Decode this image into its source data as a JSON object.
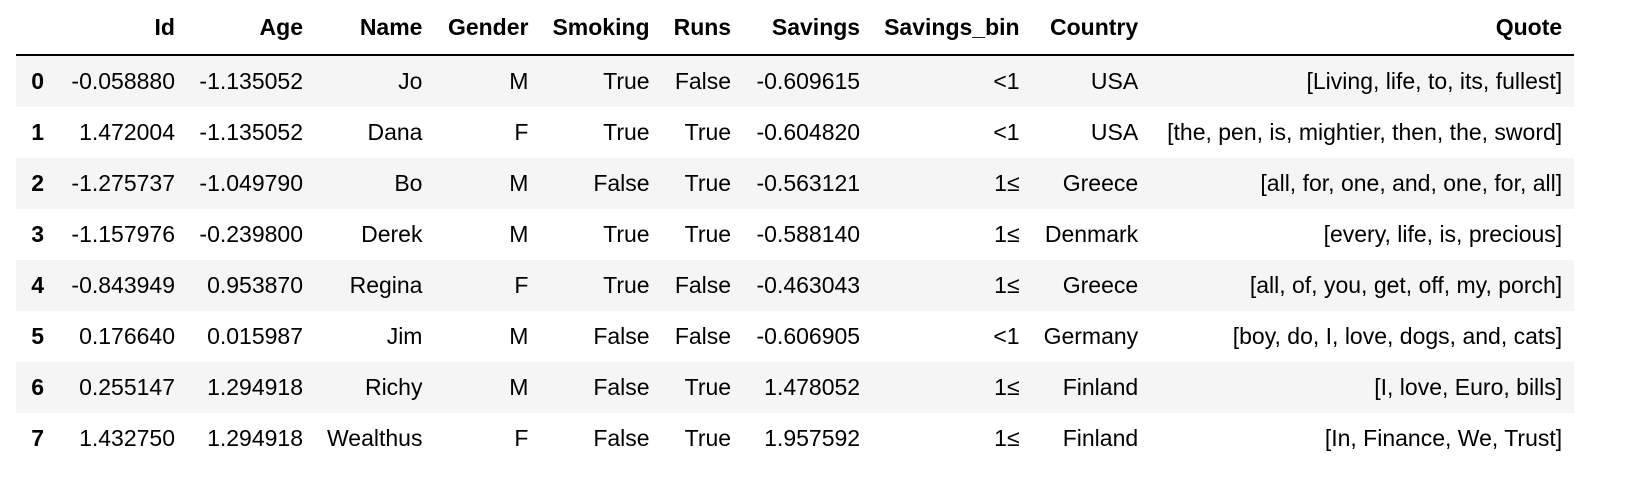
{
  "columns": {
    "index": "",
    "id": "Id",
    "age": "Age",
    "name": "Name",
    "gender": "Gender",
    "smoking": "Smoking",
    "runs": "Runs",
    "savings": "Savings",
    "savings_bin": "Savings_bin",
    "country": "Country",
    "quote": "Quote"
  },
  "rows": [
    {
      "index": "0",
      "id": "-0.058880",
      "age": "-1.135052",
      "name": "Jo",
      "gender": "M",
      "smoking": "True",
      "runs": "False",
      "savings": "-0.609615",
      "savings_bin": "<1",
      "country": "USA",
      "quote": "[Living, life, to, its, fullest]"
    },
    {
      "index": "1",
      "id": "1.472004",
      "age": "-1.135052",
      "name": "Dana",
      "gender": "F",
      "smoking": "True",
      "runs": "True",
      "savings": "-0.604820",
      "savings_bin": "<1",
      "country": "USA",
      "quote": "[the, pen, is, mightier, then, the, sword]"
    },
    {
      "index": "2",
      "id": "-1.275737",
      "age": "-1.049790",
      "name": "Bo",
      "gender": "M",
      "smoking": "False",
      "runs": "True",
      "savings": "-0.563121",
      "savings_bin": "1≤",
      "country": "Greece",
      "quote": "[all, for, one, and, one, for, all]"
    },
    {
      "index": "3",
      "id": "-1.157976",
      "age": "-0.239800",
      "name": "Derek",
      "gender": "M",
      "smoking": "True",
      "runs": "True",
      "savings": "-0.588140",
      "savings_bin": "1≤",
      "country": "Denmark",
      "quote": "[every, life, is, precious]"
    },
    {
      "index": "4",
      "id": "-0.843949",
      "age": "0.953870",
      "name": "Regina",
      "gender": "F",
      "smoking": "True",
      "runs": "False",
      "savings": "-0.463043",
      "savings_bin": "1≤",
      "country": "Greece",
      "quote": "[all, of, you, get, off, my, porch]"
    },
    {
      "index": "5",
      "id": "0.176640",
      "age": "0.015987",
      "name": "Jim",
      "gender": "M",
      "smoking": "False",
      "runs": "False",
      "savings": "-0.606905",
      "savings_bin": "<1",
      "country": "Germany",
      "quote": "[boy, do, I, love, dogs, and, cats]"
    },
    {
      "index": "6",
      "id": "0.255147",
      "age": "1.294918",
      "name": "Richy",
      "gender": "M",
      "smoking": "False",
      "runs": "True",
      "savings": "1.478052",
      "savings_bin": "1≤",
      "country": "Finland",
      "quote": "[I, love, Euro, bills]"
    },
    {
      "index": "7",
      "id": "1.432750",
      "age": "1.294918",
      "name": "Wealthus",
      "gender": "F",
      "smoking": "False",
      "runs": "True",
      "savings": "1.957592",
      "savings_bin": "1≤",
      "country": "Finland",
      "quote": "[In, Finance, We, Trust]"
    }
  ],
  "colors": {
    "stripe": "#f5f5f5",
    "background": "#ffffff",
    "header_rule": "#000000"
  }
}
